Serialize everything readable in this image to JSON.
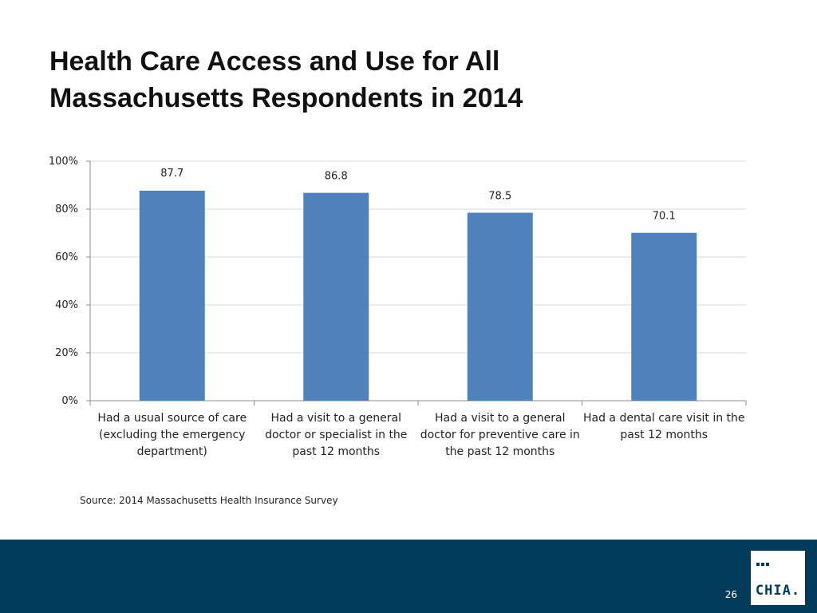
{
  "slide": {
    "title_line1": "Health Care Access and Use for All",
    "title_line2": "Massachusetts Respondents in 2014",
    "source": "Source:  2014 Massachusetts Health Insurance Survey",
    "page_number": "26",
    "logo_text": "CHIA."
  },
  "chart_data": {
    "type": "bar",
    "title": "",
    "xlabel": "",
    "ylabel": "",
    "ylim": [
      0,
      100
    ],
    "yticks": [
      0,
      20,
      40,
      60,
      80,
      100
    ],
    "ytick_labels": [
      "0%",
      "20%",
      "40%",
      "60%",
      "80%",
      "100%"
    ],
    "grid": true,
    "categories": [
      "Had a usual source of care (excluding the emergency department)",
      "Had a visit to a general doctor or specialist in the past 12 months",
      "Had a visit to a general doctor for preventive care in the past 12 months",
      "Had a dental care visit in the past 12 months"
    ],
    "values": [
      87.7,
      86.8,
      78.5,
      70.1
    ],
    "value_labels": [
      "87.7",
      "86.8",
      "78.5",
      "70.1"
    ],
    "bar_color": "#4f81bd"
  }
}
